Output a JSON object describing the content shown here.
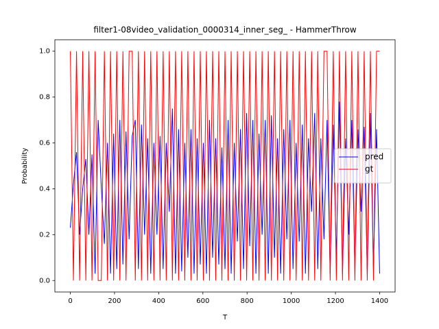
{
  "chart_data": {
    "type": "line",
    "title": "filter1-08video_validation_0000314_inner_seg_ - HammerThrow",
    "x_label": "T",
    "y_label": "Probability",
    "x": [
      0,
      14,
      28,
      42,
      56,
      70,
      84,
      98,
      112,
      126,
      140,
      154,
      168,
      182,
      196,
      210,
      224,
      238,
      252,
      266,
      280,
      294,
      308,
      322,
      336,
      350,
      364,
      378,
      392,
      406,
      420,
      434,
      448,
      462,
      476,
      490,
      504,
      518,
      532,
      546,
      560,
      574,
      588,
      602,
      616,
      630,
      644,
      658,
      672,
      686,
      700,
      714,
      728,
      742,
      756,
      770,
      784,
      798,
      812,
      826,
      840,
      854,
      868,
      882,
      896,
      910,
      924,
      938,
      952,
      966,
      980,
      994,
      1008,
      1022,
      1036,
      1050,
      1064,
      1078,
      1092,
      1106,
      1120,
      1134,
      1148,
      1162,
      1176,
      1190,
      1204,
      1218,
      1232,
      1246,
      1260,
      1274,
      1288,
      1302,
      1316,
      1330,
      1344,
      1358,
      1372,
      1386,
      1400
    ],
    "series": [
      {
        "name": "pred",
        "color": "#0000ff",
        "values": [
          0.23,
          0.42,
          0.56,
          0.2,
          0.4,
          0.53,
          0.2,
          0.55,
          0.03,
          0.7,
          0.41,
          0.16,
          0.6,
          0.03,
          0.64,
          0.05,
          0.7,
          0.07,
          0.65,
          0.18,
          0.63,
          0.7,
          0.05,
          0.68,
          0.2,
          0.62,
          0.03,
          0.6,
          0.2,
          0.63,
          0.05,
          0.6,
          0.3,
          0.75,
          0.03,
          0.66,
          0.04,
          0.6,
          0.1,
          0.66,
          0.03,
          0.62,
          0.07,
          0.6,
          0.03,
          0.7,
          0.1,
          0.62,
          0.07,
          0.58,
          0.05,
          0.7,
          0.03,
          0.6,
          0.17,
          0.66,
          0.05,
          0.73,
          0.15,
          0.7,
          0.03,
          0.64,
          0.2,
          0.7,
          0.03,
          0.72,
          0.1,
          0.62,
          0.03,
          0.66,
          0.18,
          0.7,
          0.05,
          0.6,
          0.17,
          0.68,
          0.03,
          0.62,
          0.3,
          0.73,
          0.05,
          0.62,
          0.18,
          0.7,
          0.03,
          0.68,
          0.1,
          0.78,
          0.03,
          0.62,
          0.2,
          0.7,
          0.05,
          0.66,
          0.3,
          0.67,
          0.03,
          0.73,
          0.05,
          0.66,
          0.03
        ]
      },
      {
        "name": "gt",
        "color": "#ff0000",
        "values": [
          1,
          0,
          1,
          0,
          1,
          0,
          1,
          0,
          1,
          0,
          0,
          1,
          0,
          1,
          0,
          1,
          0,
          1,
          0,
          1,
          1,
          0,
          1,
          0,
          1,
          0,
          1,
          0,
          1,
          0,
          1,
          0,
          1,
          0,
          1,
          0,
          1,
          0,
          1,
          0,
          1,
          0,
          1,
          0,
          1,
          0,
          1,
          0,
          1,
          0,
          1,
          0,
          1,
          0,
          1,
          0,
          1,
          0,
          1,
          0,
          1,
          0,
          1,
          0,
          1,
          0,
          1,
          0,
          1,
          0,
          1,
          0,
          1,
          0,
          1,
          0,
          1,
          0,
          1,
          0,
          1,
          0,
          1,
          1,
          0,
          1,
          0,
          1,
          0,
          1,
          0,
          1,
          0,
          1,
          0,
          1,
          0,
          1,
          0,
          1,
          1
        ]
      }
    ],
    "xlim": [
      -70,
      1470
    ],
    "ylim": [
      -0.05,
      1.05
    ],
    "xticks": [
      0,
      200,
      400,
      600,
      800,
      1000,
      1200,
      1400
    ],
    "yticks": [
      {
        "value": 0,
        "label": "0.0"
      },
      {
        "value": 0.2,
        "label": "0.2"
      },
      {
        "value": 0.4,
        "label": "0.4"
      },
      {
        "value": 0.6,
        "label": "0.6"
      },
      {
        "value": 0.8,
        "label": "0.8"
      },
      {
        "value": 1,
        "label": "1.0"
      }
    ],
    "legend": "center right"
  }
}
